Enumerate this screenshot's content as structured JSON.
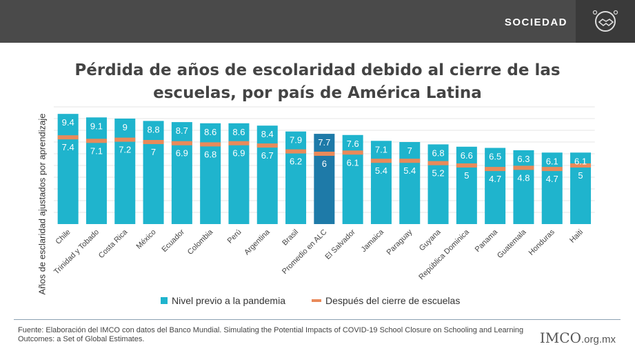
{
  "header": {
    "section": "SOCIEDAD",
    "icon": "handshake-icon"
  },
  "title_line1": "Pérdida de años de escolaridad debido al cierre de las",
  "title_line2": "escuelas, por país de América Latina",
  "colors": {
    "bar": "#1fb4cd",
    "highlight": "#1e7aa8",
    "after": "#e98a5a"
  },
  "chart_data": {
    "type": "bar",
    "ylabel": "Años de esclaridad ajustados por aprendizaje",
    "ylim": [
      0,
      10
    ],
    "grid": true,
    "legend_position": "bottom",
    "categories": [
      "Chile",
      "Trinidad y Tobado",
      "Costa Rica",
      "México",
      "Ecuador",
      "Colombia",
      "Perú",
      "Argentina",
      "Brasil",
      "Promedio en ALC",
      "El Salvador",
      "Jamaica",
      "Paraguay",
      "Guyana",
      "República Dominica",
      "Panama",
      "Guatemala",
      "Honduras",
      "Haiti"
    ],
    "highlight": "Promedio en ALC",
    "series": [
      {
        "name": "Nivel previo a la pandemia",
        "values": [
          9.4,
          9.1,
          9,
          8.8,
          8.7,
          8.6,
          8.6,
          8.4,
          7.9,
          7.7,
          7.6,
          7.1,
          7,
          6.8,
          6.6,
          6.5,
          6.3,
          6.1,
          6.1
        ],
        "labels": [
          "9.4",
          "9.1",
          "9",
          "8.8",
          "8.7",
          "8.6",
          "8.6",
          "8.4",
          "7.9",
          "7.7",
          "7.6",
          "7.1",
          "7",
          "6.8",
          "6.6",
          "6.5",
          "6.3",
          "6.1",
          "6.1"
        ]
      },
      {
        "name": "Después del cierre de escuelas",
        "values": [
          7.4,
          7.1,
          7.2,
          7,
          6.9,
          6.8,
          6.9,
          6.7,
          6.2,
          6,
          6.1,
          5.4,
          5.4,
          5.2,
          5,
          4.7,
          4.8,
          4.7,
          5
        ],
        "labels": [
          "7.4",
          "7.1",
          "7.2",
          "7",
          "6.9",
          "6.8",
          "6.9",
          "6.7",
          "6.2",
          "6",
          "6.1",
          "5.4",
          "5.4",
          "5.2",
          "5",
          "4.7",
          "4.8",
          "4.7",
          "5"
        ]
      }
    ]
  },
  "source": "Fuente: Elaboración del IMCO con datos del Banco Mundial. Simulating the Potential Impacts of COVID-19 School Closure on Schooling and Learning Outcomes: a Set of Global Estimates.",
  "logo": {
    "name": "IMCO",
    "domain": ".org.mx"
  }
}
